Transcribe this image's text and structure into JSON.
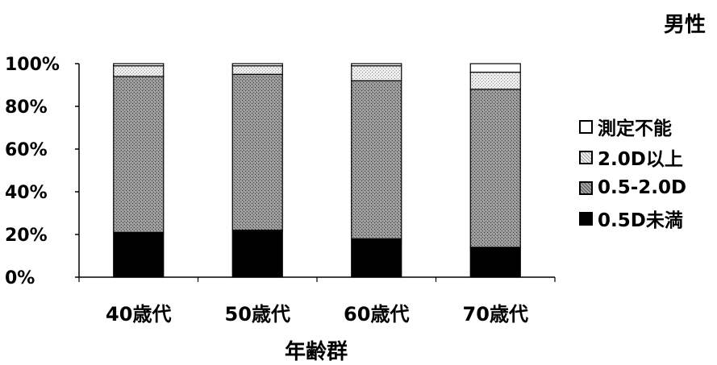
{
  "chart_data": {
    "type": "bar",
    "stacked": true,
    "title": "男性",
    "xlabel": "年齢群",
    "ylabel": "",
    "ylim": [
      0,
      100
    ],
    "yticks": [
      "0%",
      "20%",
      "40%",
      "60%",
      "80%",
      "100%"
    ],
    "categories": [
      "40歳代",
      "50歳代",
      "60歳代",
      "70歳代"
    ],
    "series": [
      {
        "name": "0.5D未満",
        "values": [
          21,
          22,
          18,
          14
        ],
        "color": "#000000",
        "pattern": "solid-black"
      },
      {
        "name": "0.5-2.0D",
        "values": [
          73,
          73,
          74,
          74
        ],
        "color": "#808080",
        "pattern": "dense-dots"
      },
      {
        "name": "2.0D以上",
        "values": [
          5,
          4,
          7,
          8
        ],
        "color": "#d9d9d9",
        "pattern": "light-dots"
      },
      {
        "name": "測定不能",
        "values": [
          1,
          1,
          1,
          4
        ],
        "color": "#ffffff",
        "pattern": "white"
      }
    ],
    "legend_order": [
      "測定不能",
      "2.0D以上",
      "0.5-2.0D",
      "0.5D未満"
    ],
    "legend_position": "right",
    "grid": false
  }
}
